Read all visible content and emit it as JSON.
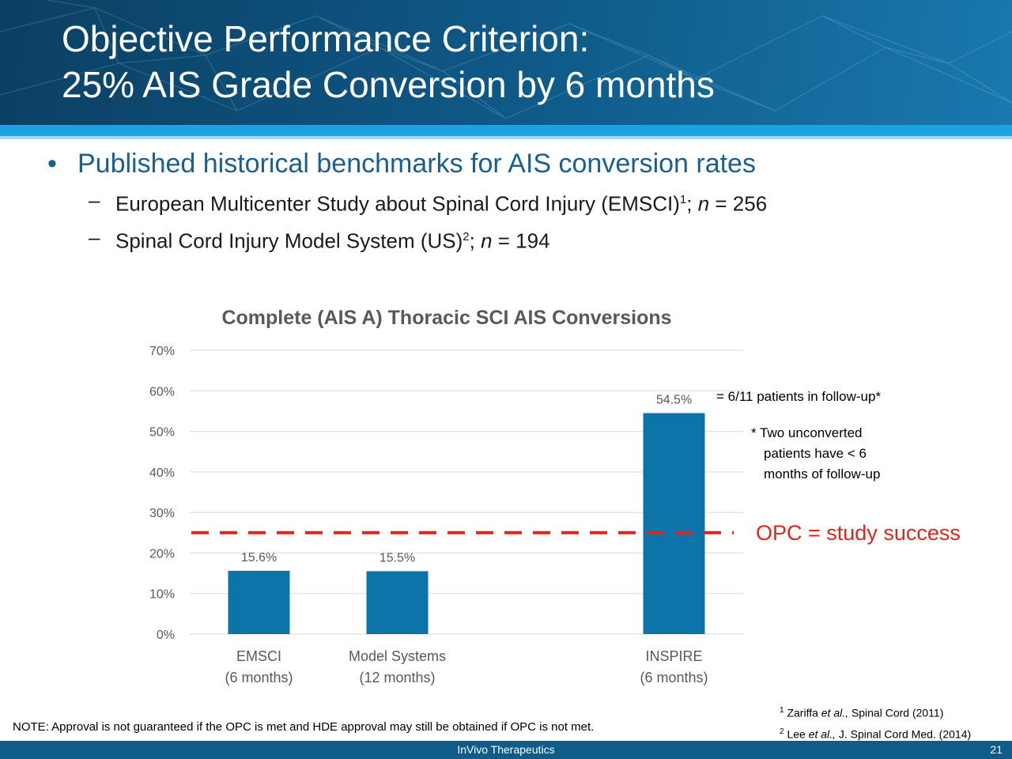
{
  "slide": {
    "title_line1": "Objective Performance Criterion:",
    "title_line2": "25% AIS Grade Conversion by 6 months"
  },
  "bullets": {
    "main": "Published historical benchmarks for AIS conversion rates",
    "sub1": {
      "text": "European Multicenter Study about Spinal Cord Injury (EMSCI)",
      "sup": "1",
      "n_label": "n",
      "n_value": " = 256"
    },
    "sub2": {
      "text": "Spinal Cord Injury Model System (US)",
      "sup": "2",
      "n_label": "n",
      "n_value": " = 194"
    }
  },
  "chart_data": {
    "type": "bar",
    "title": "Complete (AIS A) Thoracic SCI AIS Conversions",
    "categories": [
      [
        "EMSCI",
        "(6 months)"
      ],
      [
        "Model Systems",
        "(12 months)"
      ],
      [
        "INSPIRE",
        "(6 months)"
      ]
    ],
    "values": [
      15.6,
      15.5,
      54.5
    ],
    "data_labels": [
      "15.6%",
      "15.5%",
      "54.5%"
    ],
    "ylim": [
      0,
      70
    ],
    "yticks": [
      0,
      10,
      20,
      30,
      40,
      50,
      60,
      70
    ],
    "ytick_labels": [
      "0%",
      "10%",
      "20%",
      "30%",
      "40%",
      "50%",
      "60%",
      "70%"
    ],
    "grid": true,
    "reference_line": {
      "value": 25,
      "style": "dashed",
      "color": "#e3241b"
    },
    "bar_color": "#0c74a8"
  },
  "annotations": {
    "followup": "= 6/11 patients in follow-up*",
    "unconverted_1": "* Two unconverted",
    "unconverted_2": "patients have < 6",
    "unconverted_3": "months of follow-up",
    "opc": "OPC = study success"
  },
  "references": {
    "ref1": {
      "num": "1",
      "author": "Zariffa ",
      "etal": "et al.,",
      "source": " Spinal Cord (2011)"
    },
    "ref2": {
      "num": "2",
      "author": "Lee ",
      "etal": "et al.,",
      "source": " J. Spinal Cord Med. (2014)"
    }
  },
  "note": "NOTE: Approval is not guaranteed if the OPC is met and HDE approval may still be obtained if OPC is not met.",
  "footer": {
    "company": "InVivo Therapeutics",
    "page": "21"
  }
}
